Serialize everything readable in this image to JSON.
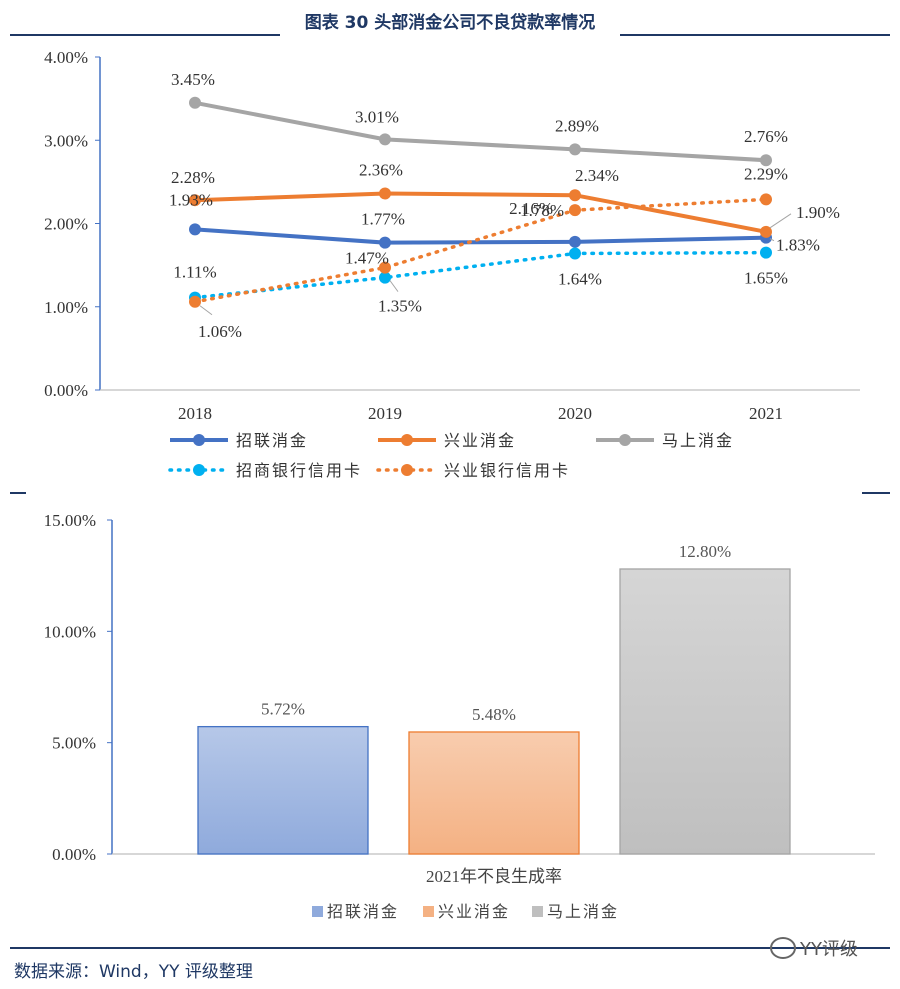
{
  "header": {
    "title": "图表 30 头部消金公司不良贷款率情况"
  },
  "chart_data": [
    {
      "type": "line",
      "categories": [
        "2018",
        "2019",
        "2020",
        "2021"
      ],
      "ylim": [
        0,
        4
      ],
      "yticks": [
        "0.00%",
        "1.00%",
        "2.00%",
        "3.00%",
        "4.00%"
      ],
      "series": [
        {
          "name": "招联消金",
          "values": [
            1.93,
            1.77,
            1.78,
            1.83
          ],
          "labels": [
            "1.93%",
            "1.77%",
            "1.78%",
            "1.83%"
          ],
          "color": "#4472c4",
          "style": "solid"
        },
        {
          "name": "兴业消金",
          "values": [
            2.28,
            2.36,
            2.34,
            1.9
          ],
          "labels": [
            "2.28%",
            "2.36%",
            "2.34%",
            "1.90%"
          ],
          "color": "#ed7d31",
          "style": "solid"
        },
        {
          "name": "马上消金",
          "values": [
            3.45,
            3.01,
            2.89,
            2.76
          ],
          "labels": [
            "3.45%",
            "3.01%",
            "2.89%",
            "2.76%"
          ],
          "color": "#a5a5a5",
          "style": "solid"
        },
        {
          "name": "招商银行信用卡",
          "values": [
            1.11,
            1.35,
            1.64,
            1.65
          ],
          "labels": [
            "1.11%",
            "1.35%",
            "1.64%",
            "1.65%"
          ],
          "color": "#00b0f0",
          "style": "dotted"
        },
        {
          "name": "兴业银行信用卡",
          "values": [
            1.06,
            1.47,
            2.16,
            2.29
          ],
          "labels": [
            "1.06%",
            "1.47%",
            "2.16%",
            "2.29%"
          ],
          "color": "#ed7d31",
          "style": "dotted"
        }
      ]
    },
    {
      "type": "bar",
      "categories": [
        "2021年不良生成率"
      ],
      "ylim": [
        0,
        15
      ],
      "yticks": [
        "0.00%",
        "5.00%",
        "10.00%",
        "15.00%"
      ],
      "xlabel": "2021年不良生成率",
      "series": [
        {
          "name": "招联消金",
          "values": [
            5.72
          ],
          "label": "5.72%",
          "color": "#8faadc"
        },
        {
          "name": "兴业消金",
          "values": [
            5.48
          ],
          "label": "5.48%",
          "color": "#f4b183"
        },
        {
          "name": "马上消金",
          "values": [
            12.8
          ],
          "label": "12.80%",
          "color": "#bfbfbf"
        }
      ]
    }
  ],
  "footer": {
    "source": "数据来源：Wind，YY 评级整理",
    "watermark": "YY评级"
  }
}
